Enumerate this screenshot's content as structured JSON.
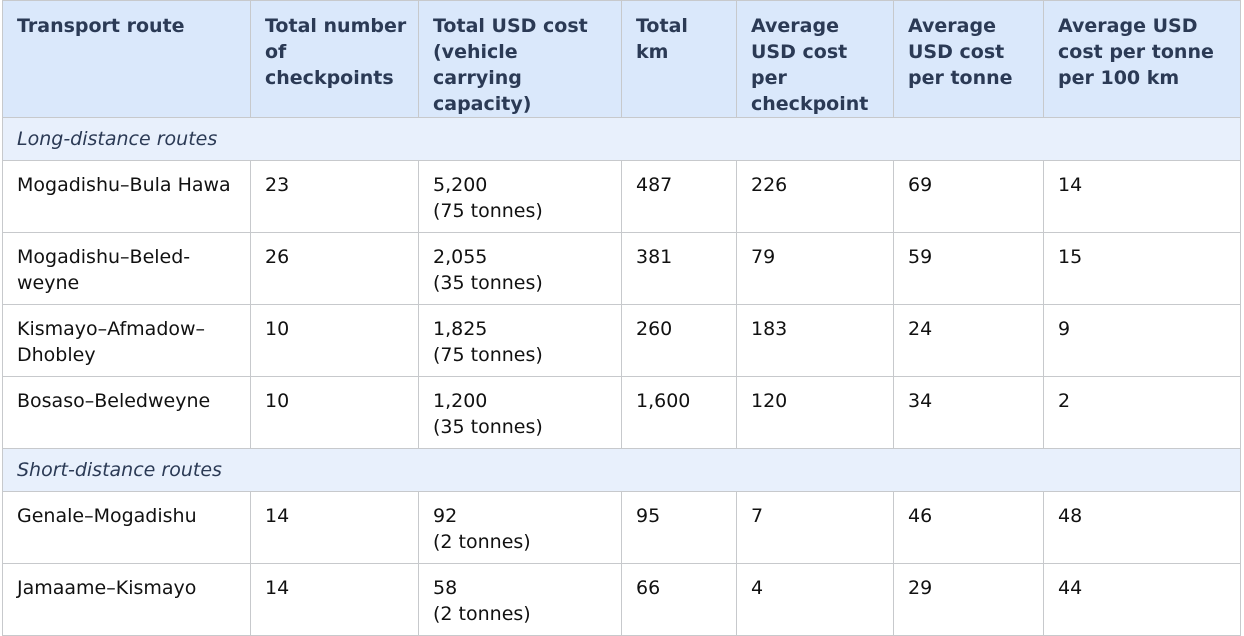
{
  "table": {
    "headers": [
      "Transport route",
      "Total number\nof checkpoints",
      "Total USD cost\n(vehicle carrying\ncapacity)",
      "Total km",
      "Average\nUSD cost per\ncheckpoint",
      "Average\nUSD cost\nper tonne",
      "Average USD\ncost per tonne\nper 100 km"
    ],
    "sections": [
      {
        "title": "Long-distance routes",
        "rows": [
          {
            "route": "Mogadishu–Bula Hawa",
            "checkpoints": "23",
            "cost": "5,200",
            "capacity": "(75 tonnes)",
            "km": "487",
            "avg_checkpoint": "226",
            "avg_tonne": "69",
            "avg_tonne_100km": "14"
          },
          {
            "route": "Mogadishu–Beled-\nweyne",
            "checkpoints": "26",
            "cost": "2,055",
            "capacity": "(35 tonnes)",
            "km": "381",
            "avg_checkpoint": "79",
            "avg_tonne": "59",
            "avg_tonne_100km": "15"
          },
          {
            "route": "Kismayo–Afmadow–\nDhobley",
            "checkpoints": "10",
            "cost": "1,825",
            "capacity": "(75 tonnes)",
            "km": "260",
            "avg_checkpoint": "183",
            "avg_tonne": "24",
            "avg_tonne_100km": "9"
          },
          {
            "route": "Bosaso–Beledweyne",
            "checkpoints": "10",
            "cost": "1,200",
            "capacity": "(35 tonnes)",
            "km": "1,600",
            "avg_checkpoint": "120",
            "avg_tonne": "34",
            "avg_tonne_100km": "2"
          }
        ]
      },
      {
        "title": "Short-distance routes",
        "rows": [
          {
            "route": "Genale–Mogadishu",
            "checkpoints": "14",
            "cost": "92",
            "capacity": "(2 tonnes)",
            "km": "95",
            "avg_checkpoint": "7",
            "avg_tonne": "46",
            "avg_tonne_100km": "48"
          },
          {
            "route": "Jamaame–Kismayo",
            "checkpoints": "14",
            "cost": "58",
            "capacity": "(2 tonnes)",
            "km": "66",
            "avg_checkpoint": "4",
            "avg_tonne": "29",
            "avg_tonne_100km": "44"
          }
        ]
      }
    ]
  }
}
